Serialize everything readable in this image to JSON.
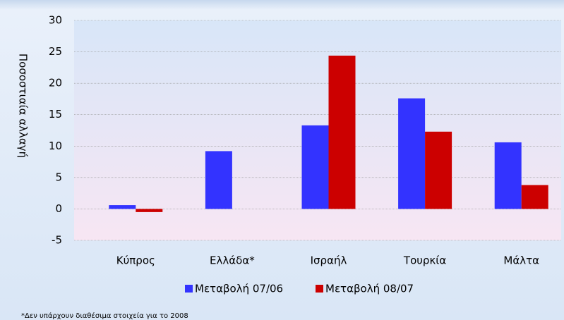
{
  "chart_data": {
    "type": "bar",
    "y_label": "Ποσοστιαία αλλαγή",
    "categories": [
      "Κύπρος",
      "Ελλάδα*",
      "Ισραήλ",
      "Τουρκία",
      "Μάλτα"
    ],
    "series": [
      {
        "name": "Μεταβολή 07/06",
        "color": "#3333ff",
        "values": [
          0.6,
          9.2,
          13.3,
          17.6,
          10.6
        ]
      },
      {
        "name": "Μεταβολή 08/07",
        "color": "#cc0000",
        "values": [
          -0.5,
          null,
          24.4,
          12.3,
          3.8
        ]
      }
    ],
    "ylim": [
      -5,
      30
    ],
    "yticks": [
      -5,
      0,
      5,
      10,
      15,
      20,
      25,
      30
    ],
    "grid": true,
    "footnote": "*Δεν υπάρχουν διαθέσιμα στοιχεία για το 2008"
  }
}
